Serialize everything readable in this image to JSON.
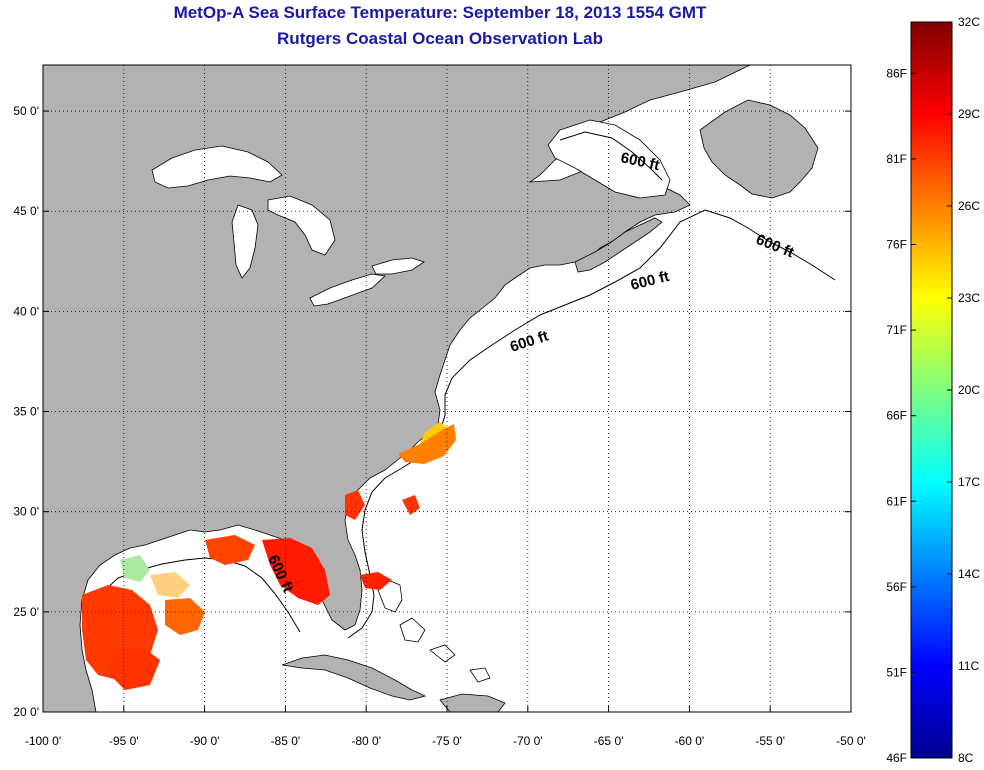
{
  "title": "MetOp-A Sea Surface Temperature:  September 18, 2013 1554 GMT",
  "subtitle": "Rutgers Coastal Ocean Observation Lab",
  "map": {
    "lon_range": [
      -100,
      -50
    ],
    "lat_range": [
      20,
      52.3
    ],
    "lon_ticks": [
      "-100 0'",
      "-95 0'",
      "-90 0'",
      "-85 0'",
      "-80 0'",
      "-75 0'",
      "-70 0'",
      "-65 0'",
      "-60 0'",
      "-55 0'",
      "-50 0'"
    ],
    "lat_ticks": [
      "20 0'",
      "25 0'",
      "30 0'",
      "35 0'",
      "40 0'",
      "45 0'",
      "50 0'"
    ],
    "grid": true,
    "land_color": "#b2b2b2",
    "ocean_color": "#ffffff",
    "contour_labels": [
      "600 ft",
      "600 ft",
      "600 ft",
      "600 ft",
      "600 ft"
    ]
  },
  "colorbar": {
    "celsius_labels": [
      "32C",
      "29C",
      "26C",
      "23C",
      "20C",
      "17C",
      "14C",
      "11C",
      "8C"
    ],
    "fahrenheit_labels": [
      "86F",
      "81F",
      "76F",
      "71F",
      "66F",
      "61F",
      "56F",
      "51F",
      "46F"
    ],
    "range_celsius": [
      8,
      32
    ],
    "colormap": "jet"
  }
}
